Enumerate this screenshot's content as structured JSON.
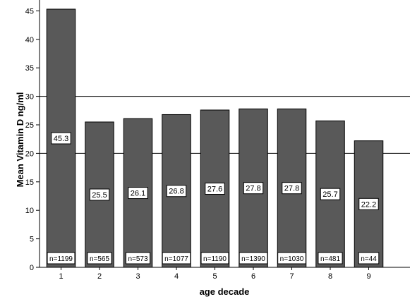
{
  "chart_data": {
    "type": "bar",
    "categories": [
      "1",
      "2",
      "3",
      "4",
      "5",
      "6",
      "7",
      "8",
      "9"
    ],
    "values": [
      45.3,
      25.5,
      26.1,
      26.8,
      27.6,
      27.8,
      27.8,
      25.7,
      22.2
    ],
    "value_labels": [
      "45.3",
      "25.5",
      "26.1",
      "26.8",
      "27.6",
      "27.8",
      "27.8",
      "25.7",
      "22.2"
    ],
    "n_labels": [
      "n=1199",
      "n=565",
      "n=573",
      "n=1077",
      "n=1190",
      "n=1390",
      "n=1030",
      "n=481",
      "n=44"
    ],
    "xlabel": "age decade",
    "ylabel": "Mean Vitamin D ng/ml",
    "ylim": [
      0,
      46.5
    ],
    "yticks": [
      0,
      5,
      10,
      15,
      20,
      25,
      30,
      35,
      40,
      45
    ],
    "reference_lines": [
      20,
      30
    ],
    "bar_color": "#595959",
    "grid": false,
    "legend": "none"
  }
}
